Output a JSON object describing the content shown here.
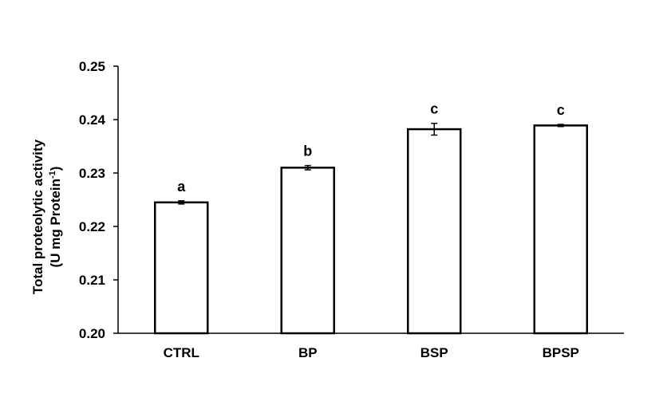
{
  "chart_data": {
    "type": "bar",
    "title": "",
    "xlabel": "",
    "ylabel_line1": "Total proteolytic activity",
    "ylabel_line2_prefix": "(U mg Protein",
    "ylabel_line2_sup": "-1",
    "ylabel_line2_suffix": ")",
    "categories": [
      "CTRL",
      "BP",
      "BSP",
      "BPSP"
    ],
    "values": [
      0.2245,
      0.231,
      0.2382,
      0.2389
    ],
    "errors": [
      0.0003,
      0.0004,
      0.0011,
      0.0002
    ],
    "significance": [
      "a",
      "b",
      "c",
      "c"
    ],
    "ylim": [
      0.2,
      0.25
    ],
    "yticks": [
      0.2,
      0.21,
      0.22,
      0.23,
      0.24,
      0.25
    ],
    "ytick_labels": [
      "0.20",
      "0.21",
      "0.22",
      "0.23",
      "0.24",
      "0.25"
    ],
    "grid": false,
    "legend": "none",
    "bar_fill": "#ffffff",
    "bar_stroke": "#000000"
  }
}
